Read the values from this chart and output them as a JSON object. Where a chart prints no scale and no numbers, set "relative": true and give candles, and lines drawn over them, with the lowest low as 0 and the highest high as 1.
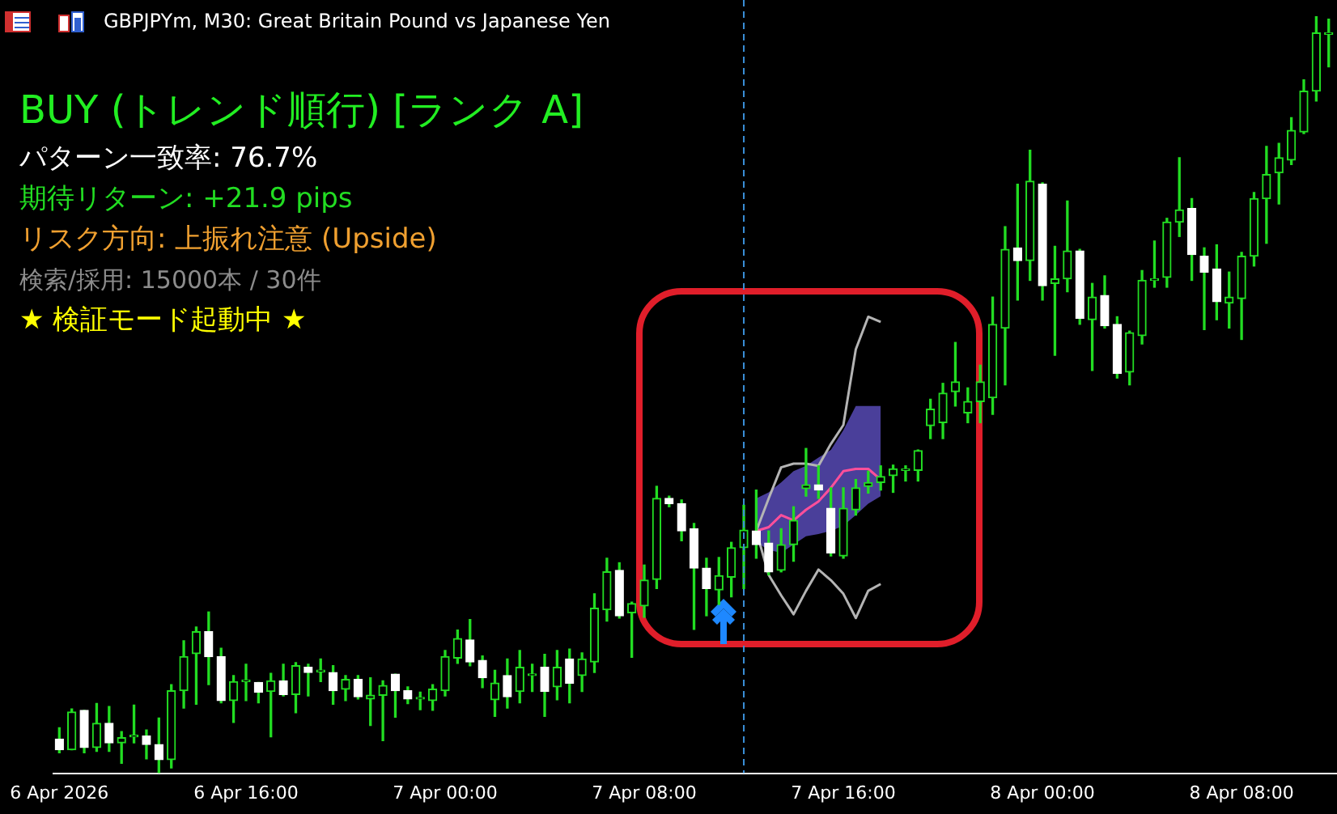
{
  "chart_data": {
    "type": "candlestick",
    "title": "GBPJPYm, M30:  Great Britain Pound vs Japanese Yen",
    "relative": true,
    "grid": false,
    "legend": false,
    "marker": "none",
    "annotations": [
      "BUY (トレンド順行) [ランク A]",
      "パターン一致率: 76.7%",
      "期待リターン: +21.9 pips",
      "リスク方向: 上振れ注意 (Upside)",
      "検索/採用: 15000本 / 30件",
      "★ 検証モード起動中 ★"
    ],
    "xlim": [
      "2026-04-06T08:15",
      "2026-04-08T11:50"
    ],
    "xticks": [
      {
        "value": "2026-04-06T08:30",
        "label": "6 Apr 2026"
      },
      {
        "value": "2026-04-06T16:00",
        "label": "6 Apr 16:00"
      },
      {
        "value": "2026-04-07T00:00",
        "label": "7 Apr 00:00"
      },
      {
        "value": "2026-04-07T08:00",
        "label": "7 Apr 08:00"
      },
      {
        "value": "2026-04-07T16:00",
        "label": "7 Apr 16:00"
      },
      {
        "value": "2026-04-08T00:00",
        "label": "8 Apr 00:00"
      },
      {
        "value": "2026-04-08T08:00",
        "label": "8 Apr 08:00"
      }
    ],
    "ref_lines": [
      {
        "axis": "x",
        "value": "2026-04-07T12:00",
        "color": "#3a8fd8",
        "line_style": "dashed"
      }
    ],
    "x": [
      "2026-04-06T08:30",
      "2026-04-06T09:00",
      "2026-04-06T09:30",
      "2026-04-06T10:00",
      "2026-04-06T10:30",
      "2026-04-06T11:00",
      "2026-04-06T11:30",
      "2026-04-06T12:00",
      "2026-04-06T12:30",
      "2026-04-06T13:00",
      "2026-04-06T13:30",
      "2026-04-06T14:00",
      "2026-04-06T14:30",
      "2026-04-06T15:00",
      "2026-04-06T15:30",
      "2026-04-06T16:00",
      "2026-04-06T16:30",
      "2026-04-06T17:00",
      "2026-04-06T17:30",
      "2026-04-06T18:00",
      "2026-04-06T18:30",
      "2026-04-06T19:00",
      "2026-04-06T19:30",
      "2026-04-06T20:00",
      "2026-04-06T20:30",
      "2026-04-06T21:00",
      "2026-04-06T21:30",
      "2026-04-06T22:00",
      "2026-04-06T22:30",
      "2026-04-06T23:00",
      "2026-04-06T23:30",
      "2026-04-07T00:00",
      "2026-04-07T00:30",
      "2026-04-07T01:00",
      "2026-04-07T01:30",
      "2026-04-07T02:00",
      "2026-04-07T02:30",
      "2026-04-07T03:00",
      "2026-04-07T03:30",
      "2026-04-07T04:00",
      "2026-04-07T04:30",
      "2026-04-07T05:00",
      "2026-04-07T05:30",
      "2026-04-07T06:00",
      "2026-04-07T06:30",
      "2026-04-07T07:00",
      "2026-04-07T07:30",
      "2026-04-07T08:00",
      "2026-04-07T08:30",
      "2026-04-07T09:00",
      "2026-04-07T09:30",
      "2026-04-07T10:00",
      "2026-04-07T10:30",
      "2026-04-07T11:00",
      "2026-04-07T11:30",
      "2026-04-07T12:00",
      "2026-04-07T12:30",
      "2026-04-07T13:00",
      "2026-04-07T13:30",
      "2026-04-07T14:00",
      "2026-04-07T14:30",
      "2026-04-07T15:00",
      "2026-04-07T15:30",
      "2026-04-07T16:00",
      "2026-04-07T16:30",
      "2026-04-07T17:00",
      "2026-04-07T17:30",
      "2026-04-07T18:00",
      "2026-04-07T18:30",
      "2026-04-07T19:00",
      "2026-04-07T19:30",
      "2026-04-07T20:00",
      "2026-04-07T20:30",
      "2026-04-07T21:00",
      "2026-04-07T21:30",
      "2026-04-07T22:00",
      "2026-04-07T22:30",
      "2026-04-07T23:00",
      "2026-04-07T23:30",
      "2026-04-08T00:00",
      "2026-04-08T00:30",
      "2026-04-08T01:00",
      "2026-04-08T01:30",
      "2026-04-08T02:00",
      "2026-04-08T02:30",
      "2026-04-08T03:00",
      "2026-04-08T03:30",
      "2026-04-08T04:00",
      "2026-04-08T04:30",
      "2026-04-08T05:00",
      "2026-04-08T05:30",
      "2026-04-08T06:00",
      "2026-04-08T06:30",
      "2026-04-08T07:00",
      "2026-04-08T07:30",
      "2026-04-08T08:00",
      "2026-04-08T08:30",
      "2026-04-08T09:00",
      "2026-04-08T09:30",
      "2026-04-08T10:00",
      "2026-04-08T10:30",
      "2026-04-08T11:00",
      "2026-04-08T11:30"
    ],
    "ohlc": [
      [
        0.045,
        0.06,
        0.027,
        0.031
      ],
      [
        0.031,
        0.085,
        0.031,
        0.081
      ],
      [
        0.083,
        0.083,
        0.027,
        0.034
      ],
      [
        0.034,
        0.092,
        0.029,
        0.066
      ],
      [
        0.066,
        0.088,
        0.029,
        0.04
      ],
      [
        0.04,
        0.055,
        0.013,
        0.047
      ],
      [
        0.048,
        0.09,
        0.04,
        0.048
      ],
      [
        0.049,
        0.057,
        0.019,
        0.038
      ],
      [
        0.038,
        0.073,
        0,
        0.018
      ],
      [
        0.018,
        0.117,
        0.007,
        0.109
      ],
      [
        0.109,
        0.175,
        0.086,
        0.154
      ],
      [
        0.158,
        0.193,
        0.091,
        0.187
      ],
      [
        0.187,
        0.213,
        0.117,
        0.154
      ],
      [
        0.154,
        0.165,
        0.093,
        0.096
      ],
      [
        0.096,
        0.129,
        0.067,
        0.121
      ],
      [
        0.121,
        0.144,
        0.096,
        0.121
      ],
      [
        0.12,
        0.12,
        0.093,
        0.107
      ],
      [
        0.108,
        0.132,
        0.048,
        0.122
      ],
      [
        0.122,
        0.144,
        0.102,
        0.104
      ],
      [
        0.104,
        0.146,
        0.08,
        0.142
      ],
      [
        0.14,
        0.144,
        0.102,
        0.133
      ],
      [
        0.134,
        0.151,
        0.121,
        0.134
      ],
      [
        0.133,
        0.142,
        0.091,
        0.109
      ],
      [
        0.111,
        0.129,
        0.096,
        0.124
      ],
      [
        0.124,
        0.129,
        0.098,
        0.101
      ],
      [
        0.098,
        0.126,
        0.063,
        0.103
      ],
      [
        0.103,
        0.122,
        0.043,
        0.116
      ],
      [
        0.131,
        0.131,
        0.074,
        0.109
      ],
      [
        0.109,
        0.114,
        0.092,
        0.098
      ],
      [
        0.098,
        0.107,
        0.084,
        0.098
      ],
      [
        0.096,
        0.117,
        0.083,
        0.111
      ],
      [
        0.109,
        0.162,
        0.102,
        0.154
      ],
      [
        0.152,
        0.189,
        0.145,
        0.178
      ],
      [
        0.176,
        0.203,
        0.142,
        0.147
      ],
      [
        0.149,
        0.155,
        0.113,
        0.126
      ],
      [
        0.097,
        0.136,
        0.075,
        0.119
      ],
      [
        0.129,
        0.151,
        0.086,
        0.101
      ],
      [
        0.108,
        0.162,
        0.093,
        0.14
      ],
      [
        0.129,
        0.144,
        0.108,
        0.129
      ],
      [
        0.14,
        0.157,
        0.075,
        0.108
      ],
      [
        0.114,
        0.162,
        0.097,
        0.14
      ],
      [
        0.151,
        0.164,
        0.093,
        0.119
      ],
      [
        0.129,
        0.159,
        0.108,
        0.151
      ],
      [
        0.147,
        0.237,
        0.133,
        0.218
      ],
      [
        0.216,
        0.284,
        0.201,
        0.266
      ],
      [
        0.268,
        0.278,
        0.205,
        0.208
      ],
      [
        0.212,
        0.226,
        0.153,
        0.224
      ],
      [
        0.221,
        0.275,
        0.206,
        0.255
      ],
      [
        0.256,
        0.379,
        0.244,
        0.363
      ],
      [
        0.363,
        0.366,
        0.352,
        0.356
      ],
      [
        0.356,
        0.361,
        0.307,
        0.32
      ],
      [
        0.323,
        0.33,
        0.19,
        0.271
      ],
      [
        0.271,
        0.284,
        0.208,
        0.244
      ],
      [
        0.242,
        0.285,
        0.223,
        0.261
      ],
      [
        0.259,
        0.305,
        0.233,
        0.298
      ],
      [
        0.298,
        0.354,
        0.244,
        0.321
      ],
      [
        0.32,
        0.374,
        0.284,
        0.302
      ],
      [
        0.304,
        0.32,
        0.262,
        0.266
      ],
      [
        0.268,
        0.323,
        0.266,
        0.302
      ],
      [
        0.302,
        0.352,
        0.28,
        0.334
      ],
      [
        0.376,
        0.429,
        0.366,
        0.381
      ],
      [
        0.381,
        0.406,
        0.363,
        0.374
      ],
      [
        0.35,
        0.377,
        0.287,
        0.291
      ],
      [
        0.287,
        0.377,
        0.284,
        0.35
      ],
      [
        0.348,
        0.388,
        0.341,
        0.377
      ],
      [
        0.379,
        0.399,
        0.37,
        0.384
      ],
      [
        0.384,
        0.406,
        0.374,
        0.392
      ],
      [
        0.393,
        0.407,
        0.371,
        0.402
      ],
      [
        0.4,
        0.406,
        0.386,
        0.4
      ],
      [
        0.4,
        0.427,
        0.386,
        0.426
      ],
      [
        0.459,
        0.494,
        0.442,
        0.481
      ],
      [
        0.463,
        0.515,
        0.442,
        0.502
      ],
      [
        0.504,
        0.569,
        0.485,
        0.517
      ],
      [
        0.476,
        0.509,
        0.463,
        0.491
      ],
      [
        0.491,
        0.539,
        0.463,
        0.517
      ],
      [
        0.496,
        0.629,
        0.474,
        0.593
      ],
      [
        0.588,
        0.722,
        0.513,
        0.692
      ],
      [
        0.694,
        0.778,
        0.625,
        0.677
      ],
      [
        0.677,
        0.823,
        0.651,
        0.782
      ],
      [
        0.778,
        0.78,
        0.625,
        0.644
      ],
      [
        0.647,
        0.696,
        0.552,
        0.653
      ],
      [
        0.653,
        0.756,
        0.636,
        0.69
      ],
      [
        0.69,
        0.692,
        0.593,
        0.601
      ],
      [
        0.599,
        0.647,
        0.532,
        0.629
      ],
      [
        0.631,
        0.657,
        0.588,
        0.591
      ],
      [
        0.593,
        0.603,
        0.522,
        0.528
      ],
      [
        0.53,
        0.584,
        0.513,
        0.582
      ],
      [
        0.578,
        0.664,
        0.567,
        0.651
      ],
      [
        0.651,
        0.703,
        0.642,
        0.651
      ],
      [
        0.655,
        0.733,
        0.642,
        0.728
      ],
      [
        0.728,
        0.813,
        0.709,
        0.744
      ],
      [
        0.746,
        0.759,
        0.651,
        0.685
      ],
      [
        0.683,
        0.694,
        0.586,
        0.662
      ],
      [
        0.666,
        0.698,
        0.599,
        0.623
      ],
      [
        0.621,
        0.662,
        0.588,
        0.629
      ],
      [
        0.627,
        0.688,
        0.573,
        0.683
      ],
      [
        0.683,
        0.767,
        0.67,
        0.759
      ],
      [
        0.759,
        0.828,
        0.7,
        0.791
      ],
      [
        0.793,
        0.832,
        0.752,
        0.813
      ],
      [
        0.81,
        0.866,
        0.804,
        0.849
      ],
      [
        0.847,
        0.916,
        0.845,
        0.901
      ],
      [
        0.901,
        1,
        0.888,
        0.978
      ],
      [
        0.976,
        0.996,
        0.933,
        0.976
      ]
    ],
    "series": [
      {
        "type": "line",
        "color": "#b4b4b4",
        "x": [
          "2026-04-07T12:30",
          "2026-04-07T13:00",
          "2026-04-07T13:30",
          "2026-04-07T14:00",
          "2026-04-07T14:30",
          "2026-04-07T15:00",
          "2026-04-07T15:30",
          "2026-04-07T16:00",
          "2026-04-07T16:30",
          "2026-04-07T17:00",
          "2026-04-07T17:30"
        ],
        "values": [
          0.32,
          0.363,
          0.404,
          0.409,
          0.409,
          0.406,
          0.435,
          0.46,
          0.56,
          0.603,
          0.596
        ]
      },
      {
        "type": "line",
        "color": "#b4b4b4",
        "x": [
          "2026-04-07T12:30",
          "2026-04-07T13:00",
          "2026-04-07T13:30",
          "2026-04-07T14:00",
          "2026-04-07T14:30",
          "2026-04-07T15:00",
          "2026-04-07T15:30",
          "2026-04-07T16:00",
          "2026-04-07T16:30",
          "2026-04-07T17:00",
          "2026-04-07T17:30"
        ],
        "values": [
          0.32,
          0.262,
          0.235,
          0.21,
          0.241,
          0.269,
          0.255,
          0.237,
          0.205,
          0.241,
          0.25
        ]
      },
      {
        "type": "line",
        "color": "#ff4f9a",
        "x": [
          "2026-04-07T12:30",
          "2026-04-07T13:00",
          "2026-04-07T13:30",
          "2026-04-07T14:00",
          "2026-04-07T14:30",
          "2026-04-07T15:00",
          "2026-04-07T15:30",
          "2026-04-07T16:00",
          "2026-04-07T16:30",
          "2026-04-07T17:00",
          "2026-04-07T17:30"
        ],
        "values": [
          0.32,
          0.325,
          0.341,
          0.334,
          0.348,
          0.359,
          0.377,
          0.399,
          0.402,
          0.402,
          0.388
        ],
        "lower": [
          0.305,
          0.295,
          0.291,
          0.302,
          0.313,
          0.316,
          0.32,
          0.327,
          0.341,
          0.356,
          0.366
        ],
        "upper": [
          0.363,
          0.371,
          0.384,
          0.399,
          0.406,
          0.417,
          0.427,
          0.453,
          0.485,
          0.485,
          0.485
        ]
      }
    ]
  }
}
